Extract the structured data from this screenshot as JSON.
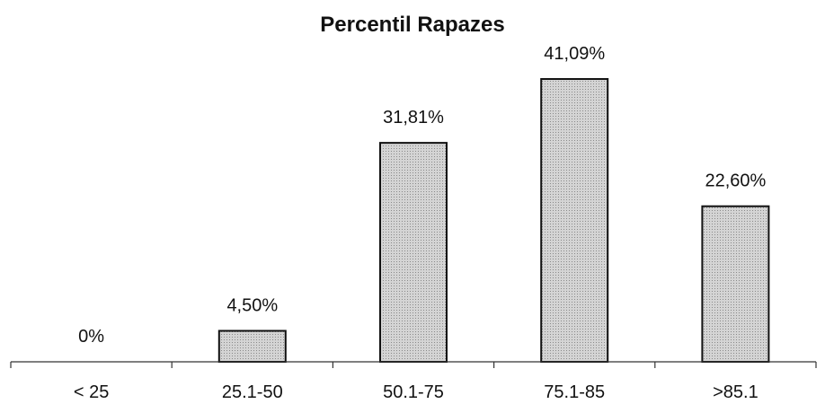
{
  "chart_data": {
    "type": "bar",
    "title": "Percentil Rapazes",
    "xlabel": "",
    "ylabel": "",
    "categories": [
      "< 25",
      "25.1-50",
      "50.1-75",
      "75.1-85",
      ">85.1"
    ],
    "values": [
      0,
      4.5,
      31.81,
      41.09,
      22.6
    ],
    "data_labels": [
      "0%",
      "4,50%",
      "31,81%",
      "41,09%",
      "22,60%"
    ],
    "ylim": [
      0,
      45
    ],
    "grid": false,
    "legend": "none",
    "bar_color": "#c8c8c8",
    "bar_edge_color": "#111111"
  }
}
